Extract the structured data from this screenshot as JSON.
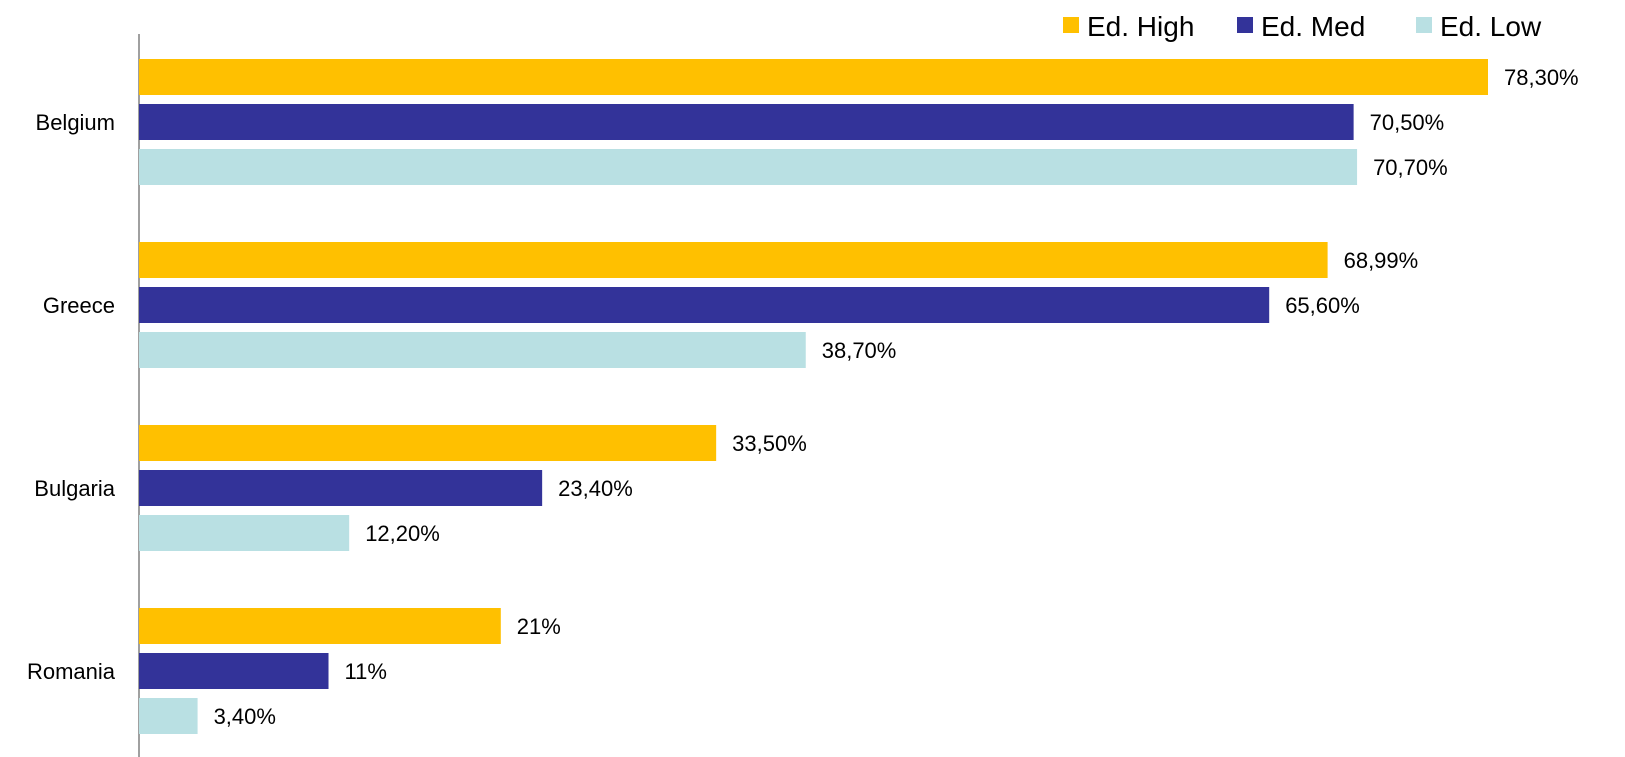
{
  "chart_data": {
    "type": "bar",
    "orientation": "horizontal",
    "title": "",
    "xlabel": "",
    "ylabel": "",
    "categories": [
      "Belgium",
      "Greece",
      "Bulgaria",
      "Romania"
    ],
    "xlim": [
      0,
      78.3
    ],
    "grid": false,
    "legend_position": "top-right",
    "series": [
      {
        "name": "Ed. High",
        "color": "#FFC000",
        "values": [
          78.3,
          68.99,
          33.5,
          21
        ],
        "labels": [
          "78,30%",
          "68,99%",
          "33,50%",
          "21%"
        ]
      },
      {
        "name": "Ed. Med",
        "color": "#333399",
        "values": [
          70.5,
          65.6,
          23.4,
          11
        ],
        "labels": [
          "70,50%",
          "65,60%",
          "23,40%",
          "11%"
        ]
      },
      {
        "name": "Ed. Low",
        "color": "#B9E0E3",
        "values": [
          70.7,
          38.7,
          12.2,
          3.4
        ],
        "labels": [
          "70,70%",
          "38,70%",
          "12,20%",
          "3,40%"
        ]
      }
    ]
  }
}
